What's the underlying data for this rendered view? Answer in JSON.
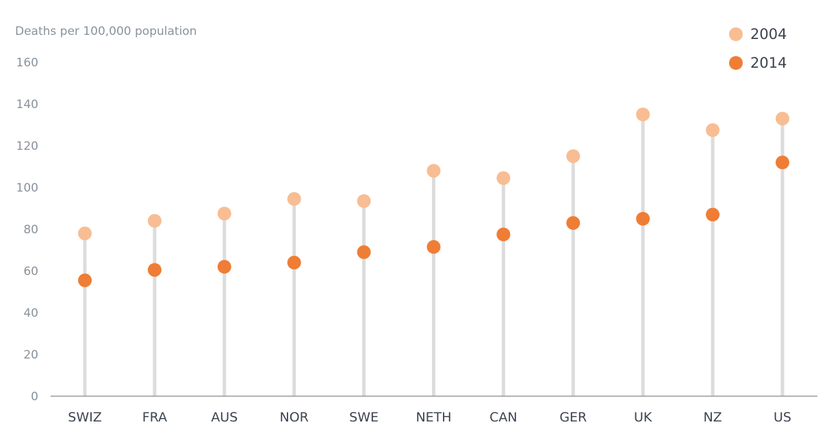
{
  "chart_data": {
    "type": "scatter",
    "title": "",
    "ylabel": "Deaths per 100,000 population",
    "xlabel": "",
    "ylim": [
      0,
      160
    ],
    "yticks": [
      0,
      20,
      40,
      60,
      80,
      100,
      120,
      140,
      160
    ],
    "categories": [
      "SWIZ",
      "FRA",
      "AUS",
      "NOR",
      "SWE",
      "NETH",
      "CAN",
      "GER",
      "UK",
      "NZ",
      "US"
    ],
    "series": [
      {
        "name": "2004",
        "color": "#f8bd92",
        "values": [
          78,
          84,
          87.5,
          94.5,
          93.5,
          108,
          104.5,
          115,
          135,
          127.5,
          133
        ]
      },
      {
        "name": "2014",
        "color": "#ef7d35",
        "values": [
          55.5,
          60.5,
          62,
          64,
          69,
          71.5,
          77.5,
          83,
          85,
          87,
          112
        ]
      }
    ],
    "stem_color": "#dcdcdc",
    "legend_position": "top-right",
    "grid": false
  }
}
